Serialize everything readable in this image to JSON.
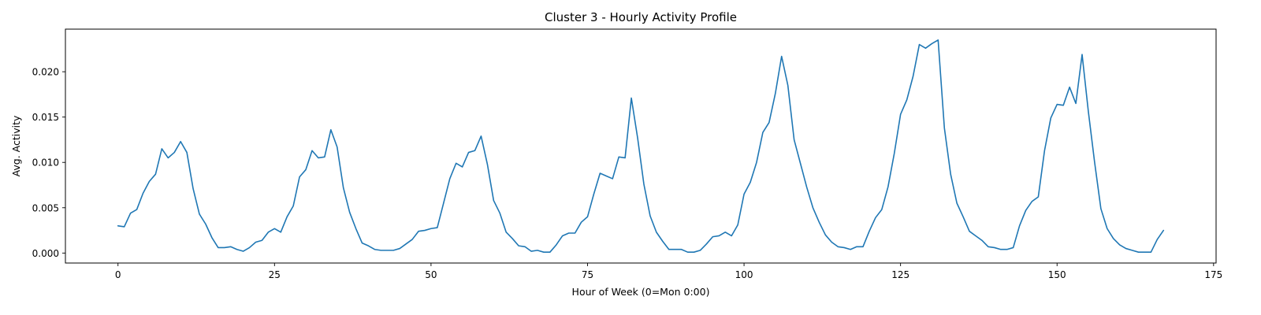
{
  "chart_data": {
    "type": "line",
    "title": "Cluster 3 - Hourly Activity Profile",
    "xlabel": "Hour of Week (0=Mon 0:00)",
    "ylabel": "Avg. Activity",
    "xlim": [
      -8.4,
      175.4
    ],
    "ylim": [
      -0.0011,
      0.0247
    ],
    "xticks": [
      0,
      25,
      50,
      75,
      100,
      125,
      150,
      175
    ],
    "xtick_labels": [
      "0",
      "25",
      "50",
      "75",
      "100",
      "125",
      "150",
      "175"
    ],
    "yticks": [
      0.0,
      0.005,
      0.01,
      0.015,
      0.02
    ],
    "ytick_labels": [
      "0.000",
      "0.005",
      "0.010",
      "0.015",
      "0.020"
    ],
    "grid": false,
    "line_color": "#1f77b4",
    "series": [
      {
        "x": [
          0,
          1,
          2,
          3,
          4,
          5,
          6,
          7,
          8,
          9,
          10,
          11,
          12,
          13,
          14,
          15,
          16,
          17,
          18,
          19,
          20,
          21,
          22,
          23,
          24,
          25,
          26,
          27,
          28,
          29,
          30,
          31,
          32,
          33,
          34,
          35,
          36,
          37,
          38,
          39,
          40,
          41,
          42,
          43,
          44,
          45,
          46,
          47,
          48,
          49,
          50,
          51,
          52,
          53,
          54,
          55,
          56,
          57,
          58,
          59,
          60,
          61,
          62,
          63,
          64,
          65,
          66,
          67,
          68,
          69,
          70,
          71,
          72,
          73,
          74,
          75,
          76,
          77,
          78,
          79,
          80,
          81,
          82,
          83,
          84,
          85,
          86,
          87,
          88,
          89,
          90,
          91,
          92,
          93,
          94,
          95,
          96,
          97,
          98,
          99,
          100,
          101,
          102,
          103,
          104,
          105,
          106,
          107,
          108,
          109,
          110,
          111,
          112,
          113,
          114,
          115,
          116,
          117,
          118,
          119,
          120,
          121,
          122,
          123,
          124,
          125,
          126,
          127,
          128,
          129,
          130,
          131,
          132,
          133,
          134,
          135,
          136,
          137,
          138,
          139,
          140,
          141,
          142,
          143,
          144,
          145,
          146,
          147,
          148,
          149,
          150,
          151,
          152,
          153,
          154,
          155,
          156,
          157,
          158,
          159,
          160,
          161,
          162,
          163,
          164,
          165,
          166,
          167
        ],
        "y": [
          0.003,
          0.0029,
          0.0044,
          0.0048,
          0.0066,
          0.0079,
          0.0087,
          0.0115,
          0.0105,
          0.0111,
          0.0123,
          0.0111,
          0.0071,
          0.0043,
          0.0032,
          0.0017,
          0.0006,
          0.0006,
          0.0007,
          0.0004,
          0.0002,
          0.0006,
          0.0012,
          0.0014,
          0.0023,
          0.0027,
          0.0023,
          0.004,
          0.0052,
          0.0084,
          0.0092,
          0.0113,
          0.0105,
          0.0106,
          0.0136,
          0.0117,
          0.0072,
          0.0045,
          0.0027,
          0.0011,
          0.0008,
          0.0004,
          0.0003,
          0.0003,
          0.0003,
          0.0005,
          0.001,
          0.0015,
          0.0024,
          0.0025,
          0.0027,
          0.0028,
          0.0055,
          0.0082,
          0.0099,
          0.0095,
          0.0111,
          0.0113,
          0.0129,
          0.0098,
          0.0058,
          0.0044,
          0.0023,
          0.0016,
          0.0008,
          0.0007,
          0.0002,
          0.0003,
          0.0001,
          0.0001,
          0.0009,
          0.0019,
          0.0022,
          0.0022,
          0.0034,
          0.004,
          0.0065,
          0.0088,
          0.0085,
          0.0082,
          0.0106,
          0.0105,
          0.0171,
          0.0127,
          0.0076,
          0.0041,
          0.0023,
          0.0013,
          0.0004,
          0.0004,
          0.0004,
          0.0001,
          0.0001,
          0.0003,
          0.001,
          0.0018,
          0.0019,
          0.0023,
          0.0019,
          0.0031,
          0.0065,
          0.0078,
          0.01,
          0.0133,
          0.0144,
          0.0176,
          0.0217,
          0.0185,
          0.0125,
          0.0099,
          0.0073,
          0.005,
          0.0034,
          0.002,
          0.0012,
          0.0007,
          0.0006,
          0.0004,
          0.0007,
          0.0007,
          0.0024,
          0.0039,
          0.0048,
          0.0073,
          0.011,
          0.0153,
          0.0169,
          0.0195,
          0.023,
          0.0226,
          0.0231,
          0.0235,
          0.0138,
          0.0087,
          0.0055,
          0.004,
          0.0024,
          0.0019,
          0.0014,
          0.0007,
          0.0006,
          0.0004,
          0.0004,
          0.0006,
          0.003,
          0.0047,
          0.0057,
          0.0062,
          0.0113,
          0.0149,
          0.0164,
          0.0163,
          0.0183,
          0.0165,
          0.0219,
          0.0156,
          0.01,
          0.0049,
          0.0027,
          0.0016,
          0.0009,
          0.0005,
          0.0003,
          0.0001,
          0.0001,
          0.0001,
          0.0015,
          0.0025
        ]
      }
    ]
  }
}
